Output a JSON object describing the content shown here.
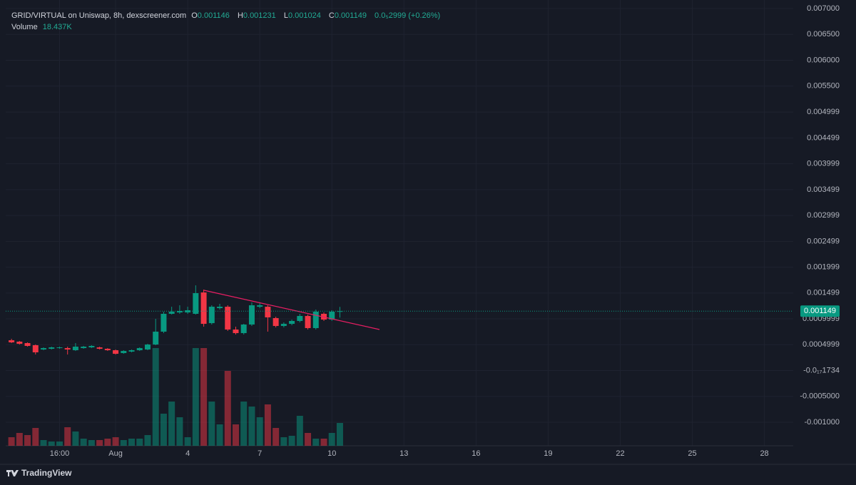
{
  "chart_data": {
    "type": "candlestick",
    "title": "GRID/VIRTUAL on Uniswap, 8h, dexscreener.com",
    "ohlc_labels": [
      "O",
      "H",
      "L",
      "C"
    ],
    "change": "0.0₅2999 (+0.26%)",
    "volume_label": "Volume",
    "volume_text": "18.437K",
    "brand": "TradingView",
    "up_color": "#089981",
    "down_color": "#f23645",
    "x": [
      -3.333,
      -3,
      -2.667,
      -2.333,
      -2,
      -1.667,
      -1.333,
      -1,
      -0.667,
      -0.333,
      0,
      0.333,
      0.667,
      1,
      1.333,
      1.667,
      2,
      2.333,
      2.667,
      3,
      3.333,
      3.667,
      4,
      4.333,
      4.667,
      5,
      5.333,
      5.667,
      6,
      6.333,
      6.667,
      7,
      7.333,
      7.667,
      8,
      8.333,
      8.667,
      9,
      9.333,
      9.667,
      10,
      10.333
    ],
    "open": [
      0.000586,
      0.000559,
      0.000531,
      0.00049,
      0.000407,
      0.000421,
      0.000434,
      0.000434,
      0.000393,
      0.000434,
      0.000448,
      0.000448,
      0.000421,
      0.000393,
      0.000338,
      0.000366,
      0.000393,
      0.000407,
      0.000503,
      0.000752,
      0.001097,
      0.001124,
      0.001124,
      0.001097,
      0.00151,
      0.000917,
      0.001207,
      0.001234,
      0.000793,
      0.000724,
      0.00089,
      0.001234,
      0.001234,
      0.001014,
      0.000862,
      0.000903,
      0.000959,
      0.001055,
      0.000821,
      0.001097,
      0.000986,
      0.001146
    ],
    "high": [
      0.000614,
      0.000572,
      0.000545,
      0.000503,
      0.000448,
      0.000462,
      0.000462,
      0.000462,
      0.000531,
      0.000476,
      0.00049,
      0.000462,
      0.000434,
      0.000407,
      0.000393,
      0.000407,
      0.000448,
      0.000517,
      0.001,
      0.001138,
      0.001234,
      0.001262,
      0.001234,
      0.001648,
      0.001566,
      0.001262,
      0.00129,
      0.001262,
      0.000848,
      0.000903,
      0.001317,
      0.001303,
      0.001262,
      0.001041,
      0.000931,
      0.000986,
      0.001097,
      0.001083,
      0.001179,
      0.001124,
      0.001166,
      0.001231
    ],
    "low": [
      0.000531,
      0.000503,
      0.000462,
      0.00031,
      0.000393,
      0.000407,
      0.000421,
      0.00031,
      0.000379,
      0.000421,
      0.000434,
      0.000407,
      0.000379,
      0.00031,
      0.000324,
      0.000352,
      0.000379,
      0.000393,
      0.00049,
      0.000724,
      0.001083,
      0.001097,
      0.001097,
      0.001083,
      0.000848,
      0.00089,
      0.001179,
      0.000766,
      0.000697,
      0.000697,
      0.000862,
      0.001207,
      0.000752,
      0.000834,
      0.000834,
      0.000876,
      0.000931,
      0.000793,
      0.000793,
      0.000959,
      0.000959,
      0.001024
    ],
    "close": [
      0.000545,
      0.000517,
      0.000476,
      0.000352,
      0.000434,
      0.000448,
      0.000448,
      0.000407,
      0.000462,
      0.000462,
      0.000476,
      0.000421,
      0.000393,
      0.000324,
      0.000379,
      0.000393,
      0.000434,
      0.000503,
      0.000752,
      0.001097,
      0.001138,
      0.001152,
      0.001166,
      0.001497,
      0.000903,
      0.001234,
      0.001234,
      0.000793,
      0.000724,
      0.00089,
      0.001262,
      0.001262,
      0.001028,
      0.000862,
      0.000903,
      0.000959,
      0.001055,
      0.000821,
      0.001138,
      0.000986,
      0.001138,
      0.001149
    ],
    "volume": [
      6912,
      10368,
      8640,
      14400,
      4608,
      3456,
      3456,
      14976,
      11520,
      5760,
      4608,
      4608,
      5760,
      6912,
      4608,
      5760,
      5760,
      8640,
      78912,
      25920,
      35712,
      23040,
      6912,
      78912,
      78912,
      35712,
      17280,
      60480,
      17280,
      35712,
      31680,
      23040,
      33408,
      14400,
      6912,
      8064,
      24192,
      10368,
      5760,
      5760,
      10368,
      18437
    ],
    "xlim": [
      -3.574,
      29.2
    ],
    "xticks": [
      {
        "value": -1.333,
        "label": "16:00"
      },
      {
        "value": 1,
        "label": "Aug"
      },
      4,
      7,
      10,
      13,
      16,
      19,
      22,
      25,
      28
    ],
    "ylim": [
      -0.001455,
      0.007166
    ],
    "yticks": [
      {
        "value": 0.007,
        "label": "0.007000"
      },
      {
        "value": 0.0065,
        "label": "0.006500"
      },
      {
        "value": 0.006,
        "label": "0.006000"
      },
      {
        "value": 0.0055,
        "label": "0.005500"
      },
      0.004999,
      0.004499,
      0.003999,
      0.003499,
      0.002999,
      0.002499,
      0.001999,
      0.001499,
      0.0009999,
      0.0004999,
      {
        "value": -1.734e-18,
        "label": "-0.0₁₇1734"
      },
      {
        "value": -0.0005,
        "label": "-0.0005000"
      },
      {
        "value": -0.001,
        "label": "-0.001000"
      }
    ],
    "grid": true
  }
}
